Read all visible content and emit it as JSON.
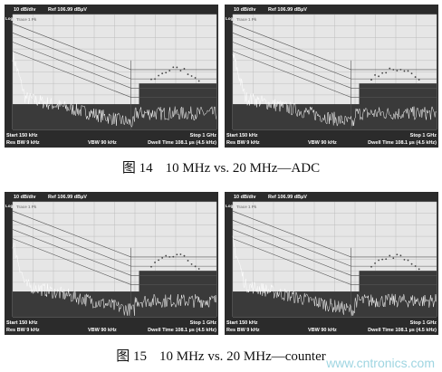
{
  "figures": [
    {
      "caption": {
        "label": "图 14",
        "text": "10 MHz vs. 20 MHz—ADC"
      },
      "panels": [
        {
          "scale": "10 dB/div",
          "ref": "Ref 106.99 dBµV",
          "mode": "Log",
          "trace": "Trace 1 Pk",
          "start": "Start 150 kHz",
          "stop": "Stop 1 GHz",
          "rbw": "Res BW 9 kHz",
          "vbw": "VBW 90 kHz",
          "dwell": "Dwell Time 108.1 µs (4.5 kHz)"
        },
        {
          "scale": "10 dB/div",
          "ref": "Ref 106.99 dBµV",
          "mode": "Log",
          "trace": "Trace 1 Pk",
          "start": "Start 150 kHz",
          "stop": "Stop 1 GHz",
          "rbw": "Res BW 9 kHz",
          "vbw": "VBW 90 kHz",
          "dwell": "Dwell Time 108.1 µs (4.5 kHz)"
        }
      ]
    },
    {
      "caption": {
        "label": "图 15",
        "text": "10 MHz vs. 20 MHz—counter"
      },
      "panels": [
        {
          "scale": "10 dB/div",
          "ref": "Ref 106.99 dBµV",
          "mode": "Log",
          "trace": "Trace 1 Pk",
          "start": "Start 150 kHz",
          "stop": "Stop 1 GHz",
          "rbw": "Res BW 9 kHz",
          "vbw": "VBW 90 kHz",
          "dwell": "Dwell Time 108.1 µs (4.5 kHz)"
        },
        {
          "scale": "10 dB/div",
          "ref": "Ref 106.99 dBµV",
          "mode": "Log",
          "trace": "Trace 1 Pk",
          "start": "Start 150 kHz",
          "stop": "Stop 1 GHz",
          "rbw": "Res BW 9 kHz",
          "vbw": "VBW 90 kHz",
          "dwell": "Dwell Time 108.1 µs (4.5 kHz)"
        }
      ]
    }
  ],
  "watermark": "www.cntronics.com"
}
